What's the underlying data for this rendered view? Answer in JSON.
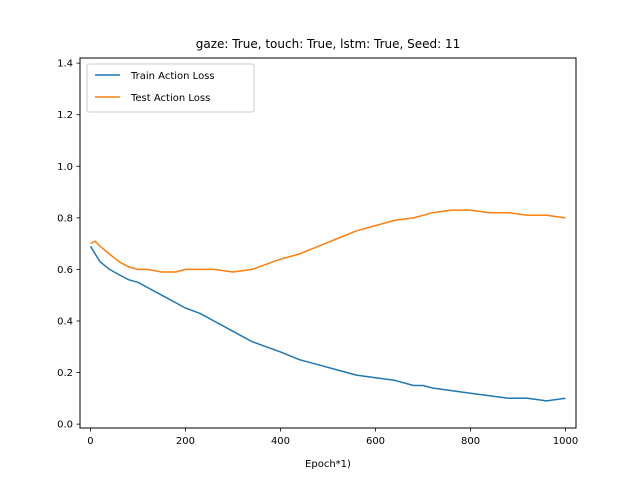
{
  "chart_data": {
    "type": "line",
    "title": "gaze: True, touch: True, lstm: True, Seed: 11",
    "xlabel": "Epoch*1)",
    "ylabel": "",
    "xlim": [
      -22,
      1022
    ],
    "ylim": [
      -0.015,
      1.42
    ],
    "xticks": [
      0,
      200,
      400,
      600,
      800,
      1000
    ],
    "yticks": [
      0.0,
      0.2,
      0.4,
      0.6,
      0.8,
      1.0,
      1.2,
      1.4
    ],
    "ytick_labels": [
      "0.0",
      "0.2",
      "0.4",
      "0.6",
      "0.8",
      "1.0",
      "1.2",
      "1.4"
    ],
    "grid": false,
    "legend_position": "top-left",
    "colors": {
      "train": "#1f77b4",
      "test": "#ff7f0e"
    },
    "series": [
      {
        "name": "Train Action Loss",
        "x": [
          0,
          10,
          20,
          40,
          60,
          80,
          100,
          120,
          150,
          180,
          200,
          230,
          260,
          300,
          340,
          370,
          400,
          440,
          480,
          520,
          560,
          600,
          640,
          680,
          700,
          720,
          760,
          800,
          840,
          880,
          920,
          960,
          1000
        ],
        "values": [
          0.69,
          0.66,
          0.63,
          0.6,
          0.58,
          0.56,
          0.55,
          0.53,
          0.5,
          0.47,
          0.45,
          0.43,
          0.4,
          0.36,
          0.32,
          0.3,
          0.28,
          0.25,
          0.23,
          0.21,
          0.19,
          0.18,
          0.17,
          0.15,
          0.15,
          0.14,
          0.13,
          0.12,
          0.11,
          0.1,
          0.1,
          0.09,
          0.1
        ]
      },
      {
        "name": "Test Action Loss",
        "x": [
          0,
          10,
          20,
          40,
          60,
          80,
          100,
          120,
          150,
          180,
          200,
          230,
          260,
          300,
          340,
          370,
          400,
          440,
          480,
          520,
          560,
          600,
          640,
          680,
          700,
          720,
          760,
          800,
          840,
          880,
          920,
          960,
          1000
        ],
        "values": [
          0.7,
          0.71,
          0.69,
          0.66,
          0.63,
          0.61,
          0.6,
          0.6,
          0.59,
          0.59,
          0.6,
          0.6,
          0.6,
          0.59,
          0.6,
          0.62,
          0.64,
          0.66,
          0.69,
          0.72,
          0.75,
          0.77,
          0.79,
          0.8,
          0.81,
          0.82,
          0.83,
          0.83,
          0.82,
          0.82,
          0.81,
          0.81,
          0.8
        ]
      }
    ]
  }
}
